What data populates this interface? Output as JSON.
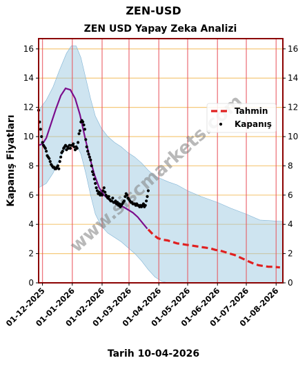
{
  "header": {
    "suptitle": "ZEN-USD",
    "date_label": "Tarih 10-04-2026"
  },
  "watermark": "www.siscmarkets.com",
  "colors": {
    "band": "#9ecae1",
    "fit_line": "#7b0d8c",
    "forecast": "#e02020",
    "points": "#000000",
    "vgrid": "#e8545c",
    "hgrid": "#f5c97a",
    "frame": "#8b0000"
  },
  "chart_data": {
    "type": "line",
    "title": "ZEN USD Yapay Zeka Analizi",
    "xlabel": "",
    "ylabel": "Kapanış Fiyatları",
    "ylim": [
      0,
      16.7
    ],
    "yticks": [
      0,
      2,
      4,
      6,
      8,
      10,
      12,
      14,
      16
    ],
    "xlim": [
      "2025-11-27",
      "2026-08-08"
    ],
    "xticks": [
      "01-12-2025",
      "01-01-2026",
      "01-02-2026",
      "01-03-2026",
      "01-04-2026",
      "01-05-2026",
      "01-06-2026",
      "01-07-2026",
      "01-08-2026"
    ],
    "grid": true,
    "legend_position": "upper-right",
    "legend": [
      {
        "label": "Tahmin",
        "kind": "dashed-line"
      },
      {
        "label": "Kapanış",
        "kind": "marker"
      }
    ],
    "series": [
      {
        "name": "Kapanış",
        "kind": "scatter",
        "points": [
          [
            "2025-11-27",
            11.8
          ],
          [
            "2025-11-28",
            11.0
          ],
          [
            "2025-11-29",
            10.5
          ],
          [
            "2025-11-30",
            10.0
          ],
          [
            "2025-12-01",
            9.6
          ],
          [
            "2025-12-02",
            9.4
          ],
          [
            "2025-12-03",
            9.3
          ],
          [
            "2025-12-04",
            9.2
          ],
          [
            "2025-12-05",
            9.0
          ],
          [
            "2025-12-06",
            8.7
          ],
          [
            "2025-12-07",
            8.6
          ],
          [
            "2025-12-08",
            8.5
          ],
          [
            "2025-12-09",
            8.3
          ],
          [
            "2025-12-10",
            8.1
          ],
          [
            "2025-12-11",
            8.0
          ],
          [
            "2025-12-12",
            7.9
          ],
          [
            "2025-12-13",
            7.9
          ],
          [
            "2025-12-14",
            7.8
          ],
          [
            "2025-12-15",
            7.8
          ],
          [
            "2025-12-16",
            7.9
          ],
          [
            "2025-12-17",
            8.0
          ],
          [
            "2025-12-18",
            7.8
          ],
          [
            "2025-12-19",
            8.3
          ],
          [
            "2025-12-20",
            8.6
          ],
          [
            "2025-12-21",
            8.9
          ],
          [
            "2025-12-22",
            9.0
          ],
          [
            "2025-12-23",
            9.2
          ],
          [
            "2025-12-24",
            9.3
          ],
          [
            "2025-12-25",
            9.4
          ],
          [
            "2025-12-26",
            9.1
          ],
          [
            "2025-12-27",
            9.3
          ],
          [
            "2025-12-28",
            9.2
          ],
          [
            "2025-12-29",
            9.4
          ],
          [
            "2025-12-30",
            9.2
          ],
          [
            "2025-12-31",
            9.4
          ],
          [
            "2026-01-01",
            9.4
          ],
          [
            "2026-01-02",
            9.5
          ],
          [
            "2026-01-03",
            9.3
          ],
          [
            "2026-01-04",
            9.1
          ],
          [
            "2026-01-05",
            9.3
          ],
          [
            "2026-01-06",
            9.2
          ],
          [
            "2026-01-07",
            9.6
          ],
          [
            "2026-01-08",
            10.2
          ],
          [
            "2026-01-09",
            10.4
          ],
          [
            "2026-01-10",
            11.0
          ],
          [
            "2026-01-11",
            11.1
          ],
          [
            "2026-01-12",
            11.0
          ],
          [
            "2026-01-13",
            10.8
          ],
          [
            "2026-01-14",
            10.5
          ],
          [
            "2026-01-15",
            9.8
          ],
          [
            "2026-01-16",
            9.3
          ],
          [
            "2026-01-17",
            9.0
          ],
          [
            "2026-01-18",
            8.8
          ],
          [
            "2026-01-19",
            8.6
          ],
          [
            "2026-01-20",
            8.4
          ],
          [
            "2026-01-21",
            8.0
          ],
          [
            "2026-01-22",
            7.6
          ],
          [
            "2026-01-23",
            7.4
          ],
          [
            "2026-01-24",
            7.1
          ],
          [
            "2026-01-25",
            6.8
          ],
          [
            "2026-01-26",
            6.5
          ],
          [
            "2026-01-27",
            6.3
          ],
          [
            "2026-01-28",
            6.1
          ],
          [
            "2026-01-29",
            6.2
          ],
          [
            "2026-01-30",
            6.0
          ],
          [
            "2026-01-31",
            6.1
          ],
          [
            "2026-02-01",
            6.0
          ],
          [
            "2026-02-02",
            6.3
          ],
          [
            "2026-02-03",
            6.5
          ],
          [
            "2026-02-04",
            6.2
          ],
          [
            "2026-02-05",
            6.0
          ],
          [
            "2026-02-06",
            5.9
          ],
          [
            "2026-02-07",
            5.8
          ],
          [
            "2026-02-08",
            5.9
          ],
          [
            "2026-02-09",
            5.7
          ],
          [
            "2026-02-10",
            5.6
          ],
          [
            "2026-02-11",
            5.6
          ],
          [
            "2026-02-12",
            5.8
          ],
          [
            "2026-02-13",
            5.5
          ],
          [
            "2026-02-14",
            5.5
          ],
          [
            "2026-02-15",
            5.6
          ],
          [
            "2026-02-16",
            5.4
          ],
          [
            "2026-02-17",
            5.5
          ],
          [
            "2026-02-18",
            5.3
          ],
          [
            "2026-02-19",
            5.4
          ],
          [
            "2026-02-20",
            5.2
          ],
          [
            "2026-02-21",
            5.3
          ],
          [
            "2026-02-22",
            5.4
          ],
          [
            "2026-02-23",
            5.5
          ],
          [
            "2026-02-24",
            5.6
          ],
          [
            "2026-02-25",
            5.9
          ],
          [
            "2026-02-26",
            6.1
          ],
          [
            "2026-02-27",
            6.0
          ],
          [
            "2026-02-28",
            5.8
          ],
          [
            "2026-03-01",
            5.7
          ],
          [
            "2026-03-02",
            5.6
          ],
          [
            "2026-03-03",
            5.5
          ],
          [
            "2026-03-04",
            5.5
          ],
          [
            "2026-03-05",
            5.4
          ],
          [
            "2026-03-06",
            5.4
          ],
          [
            "2026-03-07",
            5.4
          ],
          [
            "2026-03-08",
            5.3
          ],
          [
            "2026-03-09",
            5.4
          ],
          [
            "2026-03-10",
            5.3
          ],
          [
            "2026-03-11",
            5.3
          ],
          [
            "2026-03-12",
            5.2
          ],
          [
            "2026-03-13",
            5.3
          ],
          [
            "2026-03-14",
            5.2
          ],
          [
            "2026-03-15",
            5.3
          ],
          [
            "2026-03-16",
            5.4
          ],
          [
            "2026-03-17",
            5.2
          ],
          [
            "2026-03-18",
            5.3
          ],
          [
            "2026-03-19",
            5.6
          ],
          [
            "2026-03-20",
            5.9
          ],
          [
            "2026-03-21",
            6.3
          ]
        ]
      },
      {
        "name": "fit",
        "kind": "line",
        "points": [
          [
            "2025-11-27",
            9.4
          ],
          [
            "2025-12-01",
            9.5
          ],
          [
            "2025-12-05",
            9.9
          ],
          [
            "2025-12-10",
            10.9
          ],
          [
            "2025-12-15",
            11.9
          ],
          [
            "2025-12-20",
            12.8
          ],
          [
            "2025-12-25",
            13.3
          ],
          [
            "2025-12-30",
            13.2
          ],
          [
            "2026-01-04",
            12.6
          ],
          [
            "2026-01-09",
            11.5
          ],
          [
            "2026-01-14",
            10.0
          ],
          [
            "2026-01-19",
            8.6
          ],
          [
            "2026-01-24",
            7.4
          ],
          [
            "2026-01-29",
            6.5
          ],
          [
            "2026-02-03",
            6.0
          ],
          [
            "2026-02-08",
            5.7
          ],
          [
            "2026-02-13",
            5.5
          ],
          [
            "2026-02-18",
            5.3
          ],
          [
            "2026-02-23",
            5.2
          ],
          [
            "2026-02-28",
            5.0
          ],
          [
            "2026-03-05",
            4.8
          ],
          [
            "2026-03-10",
            4.5
          ],
          [
            "2026-03-15",
            4.1
          ],
          [
            "2026-03-20",
            3.7
          ]
        ]
      },
      {
        "name": "Tahmin",
        "kind": "line",
        "points": [
          [
            "2026-03-21",
            3.65
          ],
          [
            "2026-03-26",
            3.3
          ],
          [
            "2026-03-31",
            3.05
          ],
          [
            "2026-04-05",
            2.95
          ],
          [
            "2026-04-10",
            2.9
          ],
          [
            "2026-04-15",
            2.8
          ],
          [
            "2026-04-20",
            2.7
          ],
          [
            "2026-04-25",
            2.65
          ],
          [
            "2026-04-30",
            2.6
          ],
          [
            "2026-05-05",
            2.55
          ],
          [
            "2026-05-10",
            2.5
          ],
          [
            "2026-05-15",
            2.45
          ],
          [
            "2026-05-20",
            2.4
          ],
          [
            "2026-05-25",
            2.35
          ],
          [
            "2026-05-30",
            2.25
          ],
          [
            "2026-06-04",
            2.2
          ],
          [
            "2026-06-09",
            2.1
          ],
          [
            "2026-06-14",
            2.0
          ],
          [
            "2026-06-19",
            1.9
          ],
          [
            "2026-06-24",
            1.75
          ],
          [
            "2026-06-29",
            1.6
          ],
          [
            "2026-07-04",
            1.45
          ],
          [
            "2026-07-09",
            1.3
          ],
          [
            "2026-07-14",
            1.2
          ],
          [
            "2026-07-19",
            1.15
          ],
          [
            "2026-07-24",
            1.1
          ],
          [
            "2026-07-29",
            1.1
          ],
          [
            "2026-08-05",
            1.05
          ]
        ]
      },
      {
        "name": "band",
        "kind": "area-range",
        "points": [
          [
            "2025-11-27",
            6.5,
            11.8
          ],
          [
            "2025-12-05",
            6.8,
            12.5
          ],
          [
            "2025-12-12",
            7.5,
            13.4
          ],
          [
            "2025-12-19",
            8.5,
            14.6
          ],
          [
            "2025-12-26",
            9.3,
            15.7
          ],
          [
            "2025-12-31",
            9.6,
            16.2
          ],
          [
            "2026-01-05",
            9.5,
            16.2
          ],
          [
            "2026-01-10",
            8.8,
            15.4
          ],
          [
            "2026-01-15",
            7.5,
            14.0
          ],
          [
            "2026-01-20",
            6.0,
            12.6
          ],
          [
            "2026-01-25",
            4.7,
            11.4
          ],
          [
            "2026-01-31",
            3.9,
            10.6
          ],
          [
            "2026-02-07",
            3.4,
            10.0
          ],
          [
            "2026-02-14",
            3.1,
            9.6
          ],
          [
            "2026-02-21",
            2.8,
            9.3
          ],
          [
            "2026-02-28",
            2.4,
            8.9
          ],
          [
            "2026-03-07",
            2.0,
            8.6
          ],
          [
            "2026-03-14",
            1.5,
            8.2
          ],
          [
            "2026-03-21",
            0.9,
            7.7
          ],
          [
            "2026-03-28",
            0.4,
            7.3
          ],
          [
            "2026-04-04",
            0.1,
            7.1
          ],
          [
            "2026-04-11",
            0.0,
            6.9
          ],
          [
            "2026-04-20",
            0.0,
            6.7
          ],
          [
            "2026-05-01",
            0.0,
            6.3
          ],
          [
            "2026-05-15",
            0.0,
            5.9
          ],
          [
            "2026-06-01",
            0.0,
            5.5
          ],
          [
            "2026-06-15",
            0.0,
            5.1
          ],
          [
            "2026-07-01",
            0.0,
            4.7
          ],
          [
            "2026-07-15",
            0.0,
            4.3
          ],
          [
            "2026-08-08",
            0.0,
            4.2
          ]
        ]
      }
    ]
  }
}
